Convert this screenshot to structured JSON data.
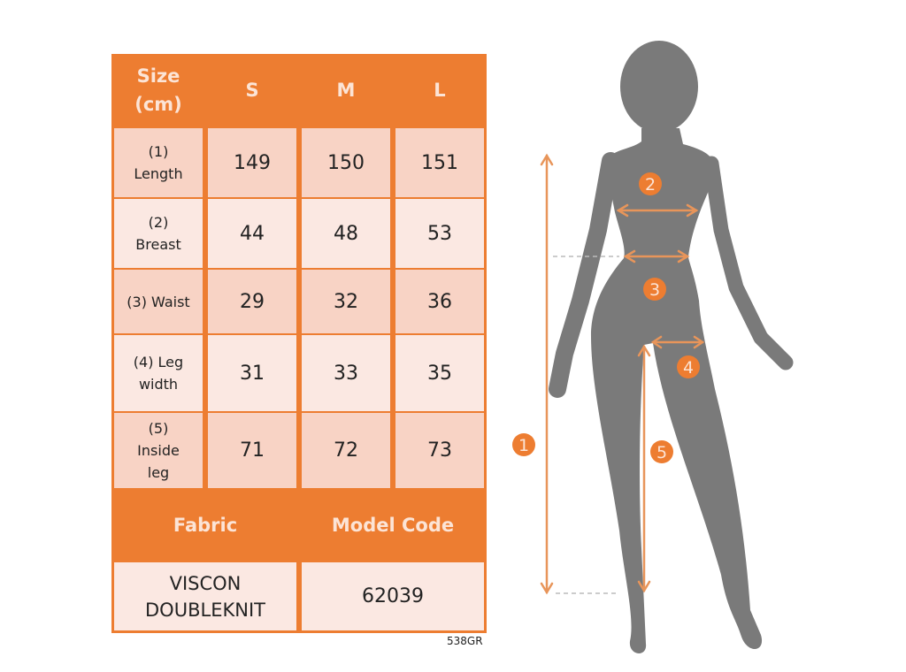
{
  "table": {
    "header": [
      "Size\n(cm)",
      "S",
      "M",
      "L"
    ],
    "rows": [
      {
        "label": "(1)\nLength",
        "values": [
          "149",
          "150",
          "151"
        ]
      },
      {
        "label": "(2)\nBreast",
        "values": [
          "44",
          "48",
          "53"
        ]
      },
      {
        "label": "(3) Waist",
        "values": [
          "29",
          "32",
          "36"
        ]
      },
      {
        "label": "(4) Leg\nwidth",
        "values": [
          "31",
          "33",
          "35"
        ]
      },
      {
        "label": "(5)\nInside\nleg",
        "values": [
          "71",
          "72",
          "73"
        ]
      }
    ],
    "footer_headers": [
      "Fabric",
      "Model Code"
    ],
    "footer_values": [
      "VISCON\nDOUBLEKNIT",
      "62039"
    ]
  },
  "product_code": "538GR",
  "diagram": {
    "markers": [
      "1",
      "2",
      "3",
      "4",
      "5"
    ]
  },
  "colors": {
    "accent": "#ED7D31",
    "silhouette": "#7A7A7A",
    "arrow": "#E8955A"
  }
}
